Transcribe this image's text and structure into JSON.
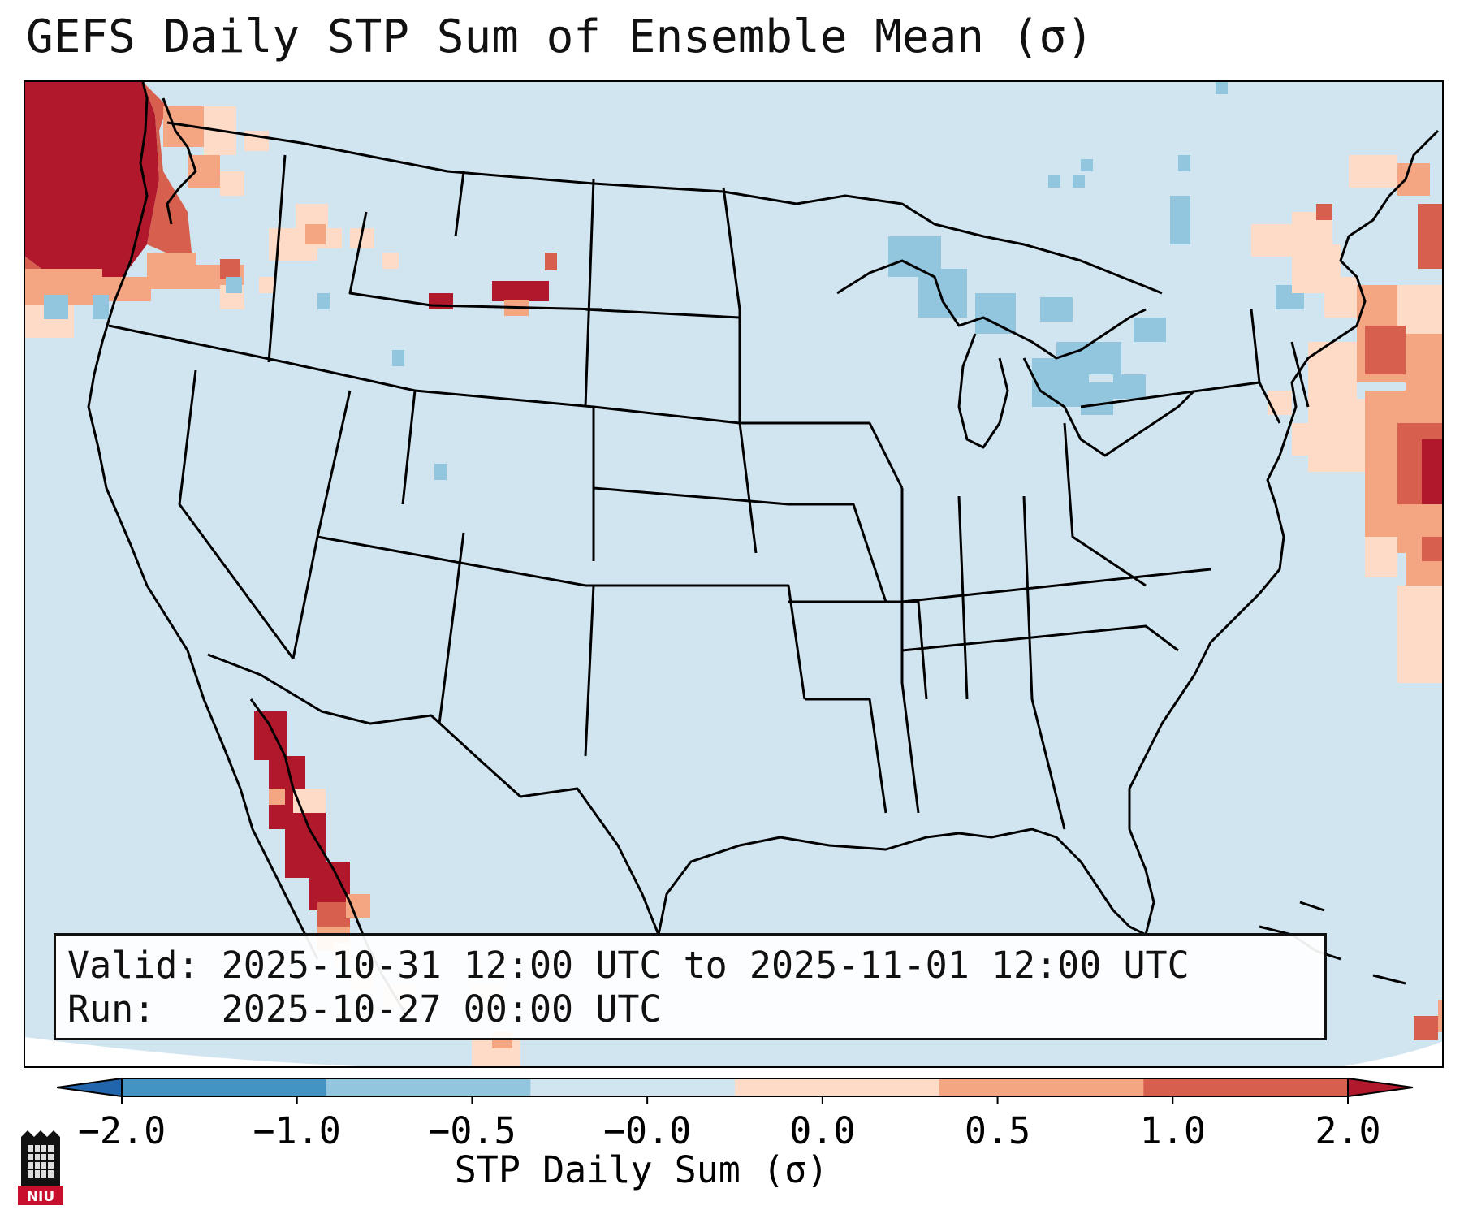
{
  "title": "GEFS Daily STP Sum of Ensemble Mean (σ)",
  "info": {
    "valid_label": "Valid:",
    "valid_value": "2025-10-31 12:00 UTC to 2025-11-01 12:00 UTC",
    "run_label": "Run:",
    "run_value": "2025-10-27 00:00 UTC"
  },
  "colorbar": {
    "label": "STP Daily Sum (σ)",
    "ticks": [
      "−2.0",
      "−1.0",
      "−0.5",
      "−0.0",
      "0.0",
      "0.5",
      "1.0",
      "2.0"
    ],
    "colors": [
      "#2166ac",
      "#4393c3",
      "#92c5de",
      "#d1e5f0",
      "#fddbc7",
      "#f4a582",
      "#d6604d",
      "#b2182b"
    ],
    "extend": "both"
  },
  "map": {
    "background_color": "#d1e5f0",
    "region": "Continental United States",
    "features": [
      "coastlines",
      "state-borders",
      "country-borders"
    ]
  },
  "logo": {
    "text": "NIU",
    "color": "#c8102e"
  }
}
